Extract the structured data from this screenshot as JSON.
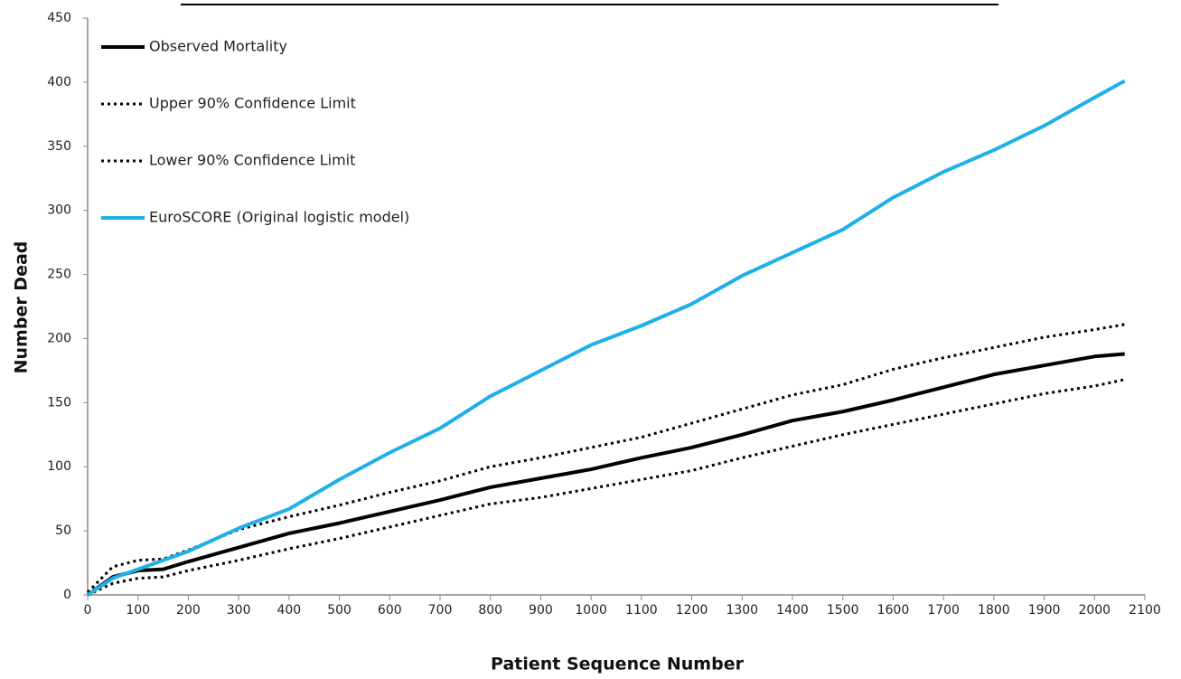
{
  "chart_data": {
    "type": "line",
    "x_label": "Patient Sequence Number",
    "y_label": "Number Dead",
    "x": [
      0,
      50,
      100,
      150,
      200,
      300,
      400,
      500,
      600,
      700,
      800,
      900,
      1000,
      1100,
      1200,
      1300,
      1400,
      1500,
      1600,
      1700,
      1800,
      1900,
      2000,
      2060
    ],
    "series": [
      {
        "name": "Observed Mortality",
        "color": "#000000",
        "style": "solid",
        "values": [
          0,
          14,
          19,
          20,
          26,
          37,
          48,
          56,
          65,
          74,
          84,
          91,
          98,
          107,
          115,
          125,
          136,
          143,
          152,
          162,
          172,
          179,
          186,
          188
        ]
      },
      {
        "name": "Upper 90% Confidence Limit",
        "color": "#000000",
        "style": "dotted",
        "values": [
          2,
          22,
          27,
          28,
          35,
          51,
          61,
          70,
          80,
          89,
          100,
          107,
          115,
          123,
          134,
          145,
          156,
          164,
          176,
          185,
          193,
          201,
          207,
          211
        ]
      },
      {
        "name": "Lower 90% Confidence Limit",
        "color": "#000000",
        "style": "dotted",
        "values": [
          0,
          9,
          13,
          14,
          19,
          27,
          36,
          44,
          53,
          62,
          71,
          76,
          83,
          90,
          97,
          107,
          116,
          125,
          133,
          141,
          149,
          157,
          163,
          168
        ]
      },
      {
        "name": "EuroSCORE (Original logistic model)",
        "color": "#1fb0e8",
        "style": "solid",
        "values": [
          0,
          13,
          20,
          27,
          34,
          52,
          67,
          90,
          111,
          130,
          155,
          175,
          195,
          210,
          227,
          249,
          267,
          285,
          310,
          330,
          347,
          366,
          388,
          401
        ]
      }
    ],
    "xlim": [
      0,
      2100
    ],
    "xticks": [
      0,
      100,
      200,
      300,
      400,
      500,
      600,
      700,
      800,
      900,
      1000,
      1100,
      1200,
      1300,
      1400,
      1500,
      1600,
      1700,
      1800,
      1900,
      2000,
      2100
    ],
    "ylim": [
      0,
      450
    ],
    "yticks": [
      0,
      50,
      100,
      150,
      200,
      250,
      300,
      350,
      400,
      450
    ],
    "grid": false,
    "legend": "top-left"
  }
}
